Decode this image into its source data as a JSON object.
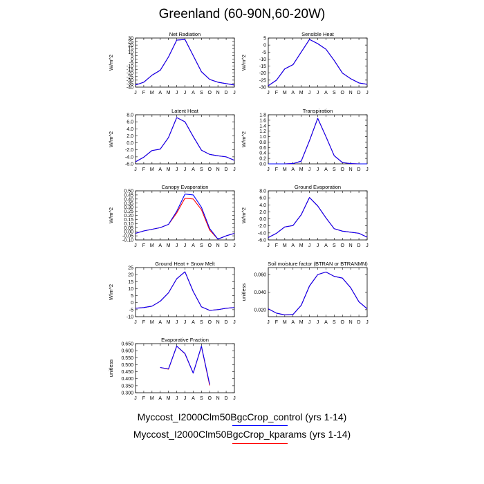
{
  "title": "Greenland (60-90N,60-20W)",
  "month_labels": [
    "J",
    "F",
    "M",
    "A",
    "M",
    "J",
    "J",
    "A",
    "S",
    "O",
    "N",
    "D",
    "J"
  ],
  "legend": {
    "control": "Myccost_I2000Clm50BgcCrop_control (yrs 1-14)",
    "kparams": "Myccost_I2000Clm50BgcCrop_kparams (yrs 1-14)"
  },
  "colors": {
    "control": "#0000ff",
    "kparams": "#ff0000"
  },
  "chart_data": [
    {
      "type": "line",
      "title": "Net Radiation",
      "ylabel": "W/m^2",
      "ylim": [
        -40,
        30
      ],
      "yticks": [
        -40,
        -35,
        -30,
        -25,
        -20,
        -15,
        -10,
        -5,
        0,
        5,
        10,
        15,
        20,
        25,
        30
      ],
      "ytick_labels": [
        "-40",
        "-35",
        "-30",
        "-25",
        "-20",
        "-15",
        "-10",
        "-5",
        "0",
        "5",
        "10",
        "15",
        "20",
        "25",
        "30"
      ],
      "x": [
        1,
        2,
        3,
        4,
        5,
        6,
        7,
        8,
        9,
        10,
        11,
        12,
        13
      ],
      "series": [
        {
          "name": "Myccost_I2000Clm50BgcCrop_control (yrs 1-14)",
          "values": [
            -37,
            -33,
            -23,
            -16,
            3,
            27,
            28,
            5,
            -18,
            -29,
            -33,
            -35,
            -37
          ]
        },
        {
          "name": "Myccost_I2000Clm50BgcCrop_kparams (yrs 1-14)",
          "values": [
            -37,
            -33,
            -23,
            -16,
            3,
            27,
            28,
            5,
            -18,
            -29,
            -33,
            -35,
            -37
          ]
        }
      ]
    },
    {
      "type": "line",
      "title": "Sensible Heat",
      "ylabel": "W/m^2",
      "ylim": [
        -30,
        5
      ],
      "yticks": [
        -30,
        -25,
        -20,
        -15,
        -10,
        -5,
        0,
        5
      ],
      "ytick_labels": [
        "-30",
        "-25",
        "-20",
        "-15",
        "-10",
        "-5",
        "0",
        "5"
      ],
      "x": [
        1,
        2,
        3,
        4,
        5,
        6,
        7,
        8,
        9,
        10,
        11,
        12,
        13
      ],
      "series": [
        {
          "name": "Myccost_I2000Clm50BgcCrop_control (yrs 1-14)",
          "values": [
            -29,
            -25,
            -17,
            -14,
            -5,
            4,
            1,
            -3,
            -11,
            -20,
            -24,
            -27,
            -28
          ]
        },
        {
          "name": "Myccost_I2000Clm50BgcCrop_kparams (yrs 1-14)",
          "values": [
            -29,
            -25,
            -17,
            -14,
            -5,
            4,
            1,
            -3,
            -11,
            -20,
            -24,
            -27,
            -28
          ]
        }
      ]
    },
    {
      "type": "line",
      "title": "Latent Heat",
      "ylabel": "W/m^2",
      "ylim": [
        -6,
        8
      ],
      "yticks": [
        -6,
        -4,
        -2,
        0,
        2,
        4,
        6,
        8
      ],
      "ytick_labels": [
        "-6.0",
        "-4.0",
        "-2.0",
        "0.0",
        "2.0",
        "4.0",
        "6.0",
        "8.0"
      ],
      "x": [
        1,
        2,
        3,
        4,
        5,
        6,
        7,
        8,
        9,
        10,
        11,
        12,
        13
      ],
      "series": [
        {
          "name": "Myccost_I2000Clm50BgcCrop_control (yrs 1-14)",
          "values": [
            -5.4,
            -4.1,
            -2.2,
            -1.8,
            1.5,
            7.2,
            6.0,
            1.8,
            -2.1,
            -3.3,
            -3.7,
            -4.0,
            -5.0
          ]
        },
        {
          "name": "Myccost_I2000Clm50BgcCrop_kparams (yrs 1-14)",
          "values": [
            -5.4,
            -4.1,
            -2.2,
            -1.8,
            1.5,
            7.2,
            6.0,
            1.8,
            -2.1,
            -3.3,
            -3.7,
            -4.0,
            -5.0
          ]
        }
      ]
    },
    {
      "type": "line",
      "title": "Transpiration",
      "ylabel": "W/m^2",
      "ylim": [
        0,
        1.8
      ],
      "yticks": [
        0,
        0.2,
        0.4,
        0.6,
        0.8,
        1.0,
        1.2,
        1.4,
        1.6,
        1.8
      ],
      "ytick_labels": [
        "0.0",
        "0.2",
        "0.4",
        "0.6",
        "0.8",
        "1.0",
        "1.2",
        "1.4",
        "1.6",
        "1.8"
      ],
      "x": [
        1,
        2,
        3,
        4,
        5,
        6,
        7,
        8,
        9,
        10,
        11,
        12,
        13
      ],
      "series": [
        {
          "name": "Myccost_I2000Clm50BgcCrop_control (yrs 1-14)",
          "values": [
            0,
            0,
            0,
            0.01,
            0.1,
            0.85,
            1.67,
            1.0,
            0.3,
            0.05,
            0.01,
            0,
            0
          ]
        },
        {
          "name": "Myccost_I2000Clm50BgcCrop_kparams (yrs 1-14)",
          "values": [
            0,
            0,
            0,
            0.01,
            0.1,
            0.85,
            1.67,
            1.0,
            0.3,
            0.05,
            0.01,
            0,
            0
          ]
        }
      ]
    },
    {
      "type": "line",
      "title": "Canopy Evaporation",
      "ylabel": "W/m^2",
      "ylim": [
        -0.1,
        0.5
      ],
      "yticks": [
        -0.1,
        -0.05,
        0,
        0.05,
        0.1,
        0.15,
        0.2,
        0.25,
        0.3,
        0.35,
        0.4,
        0.45,
        0.5
      ],
      "ytick_labels": [
        "-0.10",
        "-0.05",
        "0.00",
        "0.05",
        "0.10",
        "0.15",
        "0.20",
        "0.25",
        "0.30",
        "0.35",
        "0.40",
        "0.45",
        "0.50"
      ],
      "x": [
        1,
        2,
        3,
        4,
        5,
        6,
        7,
        8,
        9,
        10,
        11,
        12,
        13
      ],
      "series": [
        {
          "name": "Myccost_I2000Clm50BgcCrop_control (yrs 1-14)",
          "values": [
            -0.02,
            0.01,
            0.03,
            0.05,
            0.09,
            0.25,
            0.46,
            0.45,
            0.3,
            0.04,
            -0.09,
            -0.05,
            -0.02
          ]
        },
        {
          "name": "Myccost_I2000Clm50BgcCrop_kparams (yrs 1-14)",
          "values": [
            -0.02,
            0.01,
            0.03,
            0.05,
            0.09,
            0.23,
            0.41,
            0.4,
            0.27,
            0.02,
            -0.09,
            -0.05,
            -0.02
          ]
        }
      ]
    },
    {
      "type": "line",
      "title": "Ground Evaporation",
      "ylabel": "W/m^2",
      "ylim": [
        -6,
        8
      ],
      "yticks": [
        -6,
        -4,
        -2,
        0,
        2,
        4,
        6,
        8
      ],
      "ytick_labels": [
        "-6.0",
        "-4.0",
        "-2.0",
        "0.0",
        "2.0",
        "4.0",
        "6.0",
        "8.0"
      ],
      "x": [
        1,
        2,
        3,
        4,
        5,
        6,
        7,
        8,
        9,
        10,
        11,
        12,
        13
      ],
      "series": [
        {
          "name": "Myccost_I2000Clm50BgcCrop_control (yrs 1-14)",
          "values": [
            -5.3,
            -4.1,
            -2.3,
            -1.9,
            1.2,
            6.1,
            3.7,
            0.3,
            -2.8,
            -3.5,
            -3.8,
            -4.1,
            -5.2
          ]
        },
        {
          "name": "Myccost_I2000Clm50BgcCrop_kparams (yrs 1-14)",
          "values": [
            -5.3,
            -4.1,
            -2.3,
            -1.9,
            1.2,
            6.1,
            3.7,
            0.3,
            -2.8,
            -3.5,
            -3.8,
            -4.1,
            -5.2
          ]
        }
      ]
    },
    {
      "type": "line",
      "title": "Ground Heat + Snow Melt",
      "ylabel": "W/m^2",
      "ylim": [
        -10,
        25
      ],
      "yticks": [
        -10,
        -5,
        0,
        5,
        10,
        15,
        20,
        25
      ],
      "ytick_labels": [
        "-10",
        "-5",
        "0",
        "5",
        "10",
        "15",
        "20",
        "25"
      ],
      "x": [
        1,
        2,
        3,
        4,
        5,
        6,
        7,
        8,
        9,
        10,
        11,
        12,
        13
      ],
      "series": [
        {
          "name": "Myccost_I2000Clm50BgcCrop_control (yrs 1-14)",
          "values": [
            -4,
            -3.5,
            -2.5,
            1,
            7,
            17,
            22,
            8,
            -3,
            -5.5,
            -5,
            -4,
            -3.5
          ]
        },
        {
          "name": "Myccost_I2000Clm50BgcCrop_kparams (yrs 1-14)",
          "values": [
            -4,
            -3.5,
            -2.5,
            1,
            7,
            17,
            22,
            8,
            -3,
            -5.5,
            -5,
            -4,
            -3.5
          ]
        }
      ]
    },
    {
      "type": "line",
      "title": "Soil moisture factor (BTRAN or BTRANMN)",
      "ylabel": "unitless",
      "ylim": [
        0.012,
        0.068
      ],
      "yticks": [
        0.02,
        0.04,
        0.06
      ],
      "ytick_labels": [
        "0.020",
        "0.040",
        "0.060"
      ],
      "x": [
        1,
        2,
        3,
        4,
        5,
        6,
        7,
        8,
        9,
        10,
        11,
        12,
        13
      ],
      "series": [
        {
          "name": "Myccost_I2000Clm50BgcCrop_control (yrs 1-14)",
          "values": [
            0.021,
            0.016,
            0.014,
            0.0145,
            0.025,
            0.047,
            0.06,
            0.063,
            0.058,
            0.056,
            0.045,
            0.029,
            0.021
          ]
        },
        {
          "name": "Myccost_I2000Clm50BgcCrop_kparams (yrs 1-14)",
          "values": [
            0.021,
            0.016,
            0.014,
            0.0145,
            0.025,
            0.047,
            0.06,
            0.063,
            0.058,
            0.056,
            0.045,
            0.029,
            0.021
          ]
        }
      ]
    },
    {
      "type": "line",
      "title": "Evaporative Fraction",
      "ylabel": "unitless",
      "ylim": [
        0.3,
        0.65
      ],
      "yticks": [
        0.3,
        0.35,
        0.4,
        0.45,
        0.5,
        0.55,
        0.6,
        0.65
      ],
      "ytick_labels": [
        "0.300",
        "0.350",
        "0.400",
        "0.450",
        "0.500",
        "0.550",
        "0.600",
        "0.650"
      ],
      "x": [
        1,
        2,
        3,
        4,
        5,
        6,
        7,
        8,
        9,
        10,
        11,
        12,
        13
      ],
      "series": [
        {
          "name": "Myccost_I2000Clm50BgcCrop_control (yrs 1-14)",
          "values": [
            null,
            null,
            null,
            0.48,
            0.47,
            0.632,
            0.58,
            0.44,
            0.632,
            0.36,
            null,
            null,
            null
          ]
        },
        {
          "name": "Myccost_I2000Clm50BgcCrop_kparams (yrs 1-14)",
          "values": [
            null,
            null,
            null,
            0.48,
            0.468,
            0.632,
            0.578,
            0.44,
            0.63,
            0.352,
            null,
            null,
            null
          ]
        }
      ]
    }
  ]
}
